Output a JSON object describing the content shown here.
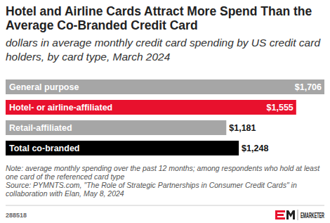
{
  "chart_data": {
    "type": "bar",
    "orientation": "horizontal",
    "title": "Hotel and Airline Cards Attract More Spend Than the Average Co-Branded Credit Card",
    "subtitle": "dollars in average monthly credit card spending by US credit card holders, by card type, March 2024",
    "categories": [
      "General purpose",
      "Hotel- or airline-affiliated",
      "Retail-affiliated",
      "Total co-branded"
    ],
    "values": [
      1706,
      1555,
      1181,
      1248
    ],
    "value_labels": [
      "$1,706",
      "$1,555",
      "$1,181",
      "$1,248"
    ],
    "colors": [
      "#a6a6a6",
      "#e8112d",
      "#a6a6a6",
      "#000000"
    ],
    "ylim": [
      0,
      1706
    ],
    "tick_labels": false,
    "grid": false,
    "data_labels": true,
    "note": "Note: average monthly spending over the past 12 months; among respondents who hold at least one card of the referenced card type",
    "source": "Source: PYMNTS.com, \"The Role of Strategic Partnerships in Consumer Credit Cards\" in collaboration with Elan, May 8, 2024",
    "chart_id": "288518",
    "brand": "EMARKETER"
  }
}
